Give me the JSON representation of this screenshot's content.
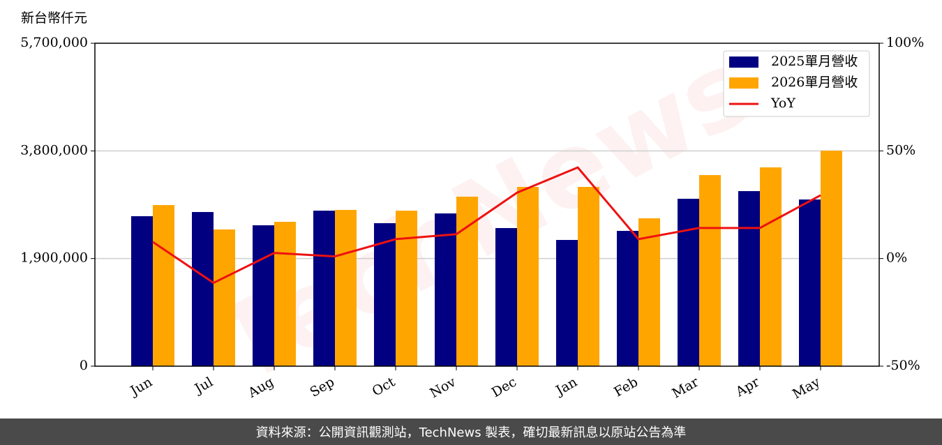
{
  "chart_data": {
    "type": "bar_line",
    "y_label": "新台幣仟元",
    "watermark": "TechNews",
    "footer": "資料來源：公開資訊觀測站，TechNews 製表，確切最新訊息以原站公告為準",
    "categories": [
      "Jun",
      "Jul",
      "Aug",
      "Sep",
      "Oct",
      "Nov",
      "Dec",
      "Jan",
      "Feb",
      "Mar",
      "Apr",
      "May"
    ],
    "series": [
      {
        "name": "2025單月營收",
        "color": "#000080",
        "type": "bar",
        "values": [
          2647000,
          2721000,
          2487000,
          2745000,
          2524000,
          2696000,
          2438000,
          2228000,
          2388000,
          2955000,
          3090000,
          2942000
        ]
      },
      {
        "name": "2026單月營收",
        "color": "#ffa500",
        "type": "bar",
        "values": [
          2844000,
          2413000,
          2548000,
          2758000,
          2745000,
          2992000,
          3164000,
          3164000,
          2610000,
          3373000,
          3509000,
          3804000
        ]
      },
      {
        "name": "YoY",
        "color": "#ee1111",
        "type": "line",
        "axis": "y2",
        "values": [
          7.7,
          -11.3,
          2.6,
          1.0,
          9.0,
          11.3,
          30.6,
          42.3,
          9.0,
          14.2,
          14.2,
          29.4
        ]
      }
    ],
    "ylim": [
      0,
      5700000
    ],
    "yticks": [
      0,
      {
        "value": 1900000,
        "label": "1,900,000"
      },
      {
        "value": 3800000,
        "label": "3,800,000"
      },
      {
        "value": 5700000,
        "label": "5,700,000"
      }
    ],
    "y2lim": [
      -50,
      100
    ],
    "y2ticks": [
      {
        "value": -50,
        "label": "-50%"
      },
      {
        "value": 0,
        "label": "0%"
      },
      {
        "value": 50,
        "label": "50%"
      },
      {
        "value": 100,
        "label": "100%"
      }
    ],
    "grid": true,
    "legend": "upper right"
  }
}
